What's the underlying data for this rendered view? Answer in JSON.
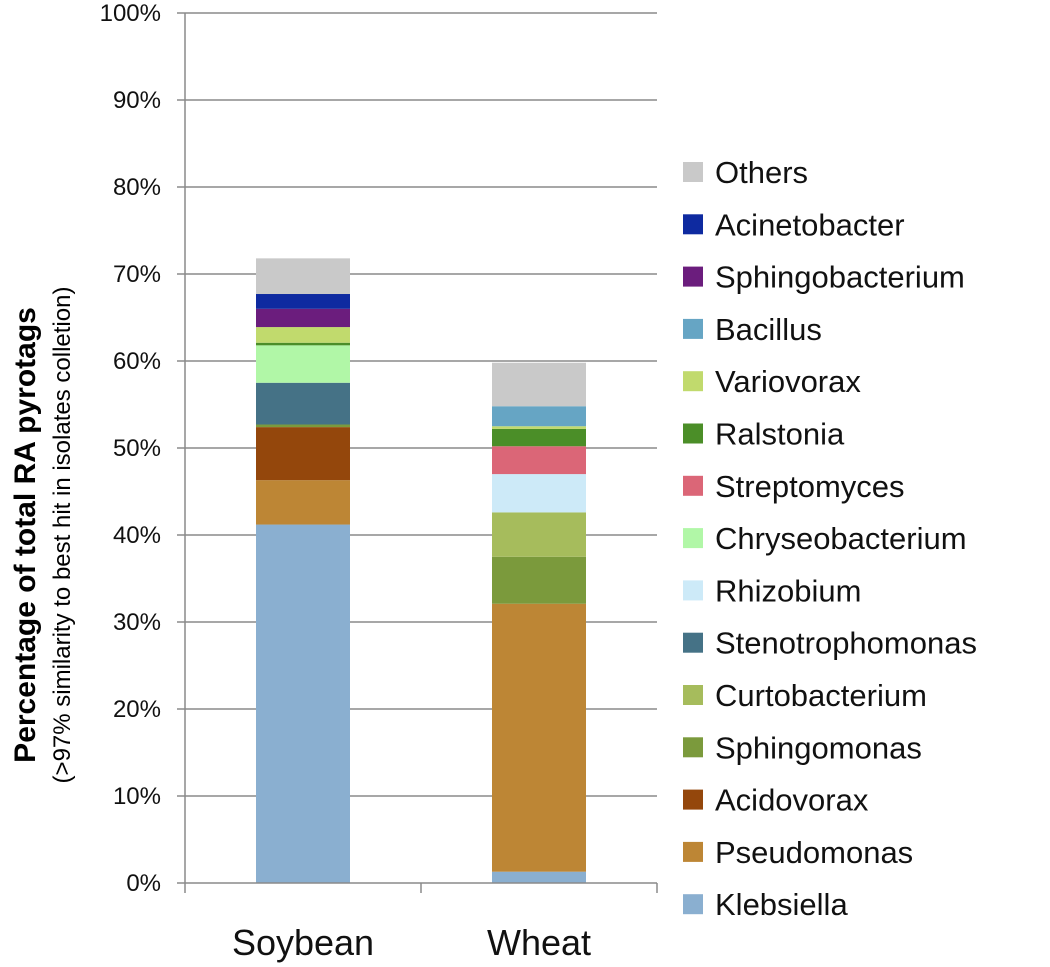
{
  "chart_data": {
    "type": "bar",
    "stacked": true,
    "categories": [
      "Soybean",
      "Wheat"
    ],
    "ylabel": "Percentage of total RA pyrotags",
    "ylabel_sub": "(>97% similarity  to best hit in isolates colletion)",
    "ylim": [
      0,
      100
    ],
    "yticks": [
      "0%",
      "10%",
      "20%",
      "30%",
      "40%",
      "50%",
      "60%",
      "70%",
      "80%",
      "90%",
      "100%"
    ],
    "grid": true,
    "legend_position": "right",
    "series": [
      {
        "name": "Klebsiella",
        "color": "#8aafd0",
        "values": [
          41.2,
          1.3
        ]
      },
      {
        "name": "Pseudomonas",
        "color": "#bd8635",
        "values": [
          5.1,
          30.8
        ]
      },
      {
        "name": "Acidovorax",
        "color": "#94470c",
        "values": [
          6.1,
          0
        ]
      },
      {
        "name": "Sphingomonas",
        "color": "#7b9a3c",
        "values": [
          0.3,
          5.4
        ]
      },
      {
        "name": "Curtobacterium",
        "color": "#a6bc5c",
        "values": [
          0,
          5.1
        ]
      },
      {
        "name": "Stenotrophomonas",
        "color": "#457286",
        "values": [
          4.8,
          0
        ]
      },
      {
        "name": "Rhizobium",
        "color": "#cdeaf8",
        "values": [
          0,
          4.4
        ]
      },
      {
        "name": "Chryseobacterium",
        "color": "#b1f7a7",
        "values": [
          4.3,
          0
        ]
      },
      {
        "name": "Streptomyces",
        "color": "#db6677",
        "values": [
          0,
          3.2
        ]
      },
      {
        "name": "Ralstonia",
        "color": "#4b8e28",
        "values": [
          0.3,
          2.0
        ]
      },
      {
        "name": "Variovorax",
        "color": "#c1da6d",
        "values": [
          1.8,
          0.3
        ]
      },
      {
        "name": "Bacillus",
        "color": "#66a5c4",
        "values": [
          0,
          2.3
        ]
      },
      {
        "name": "Sphingobacterium",
        "color": "#6b1d7d",
        "values": [
          2.1,
          0
        ]
      },
      {
        "name": "Acinetobacter",
        "color": "#0e2aa0",
        "values": [
          1.7,
          0
        ]
      },
      {
        "name": "Others",
        "color": "#c9c9c9",
        "values": [
          4.1,
          5.0
        ]
      }
    ]
  }
}
